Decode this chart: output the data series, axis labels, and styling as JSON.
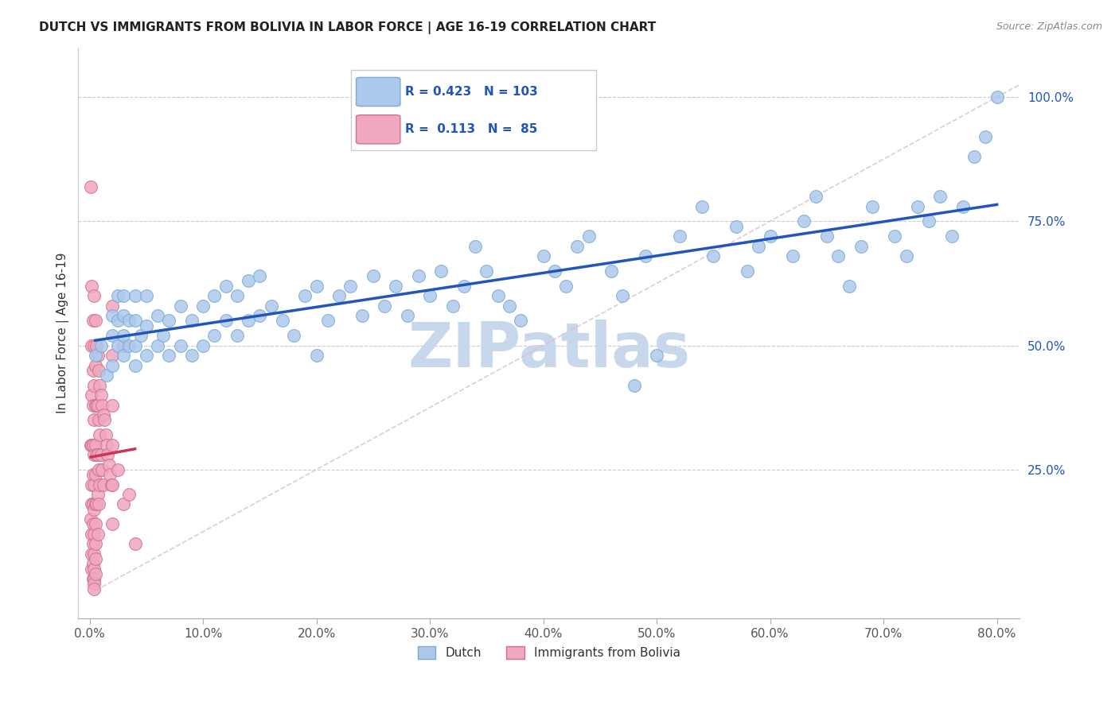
{
  "title": "DUTCH VS IMMIGRANTS FROM BOLIVIA IN LABOR FORCE | AGE 16-19 CORRELATION CHART",
  "source": "Source: ZipAtlas.com",
  "ylabel": "In Labor Force | Age 16-19",
  "xlim": [
    -0.01,
    0.82
  ],
  "ylim": [
    -0.05,
    1.1
  ],
  "xlabel_ticks": [
    0.0,
    0.1,
    0.2,
    0.3,
    0.4,
    0.5,
    0.6,
    0.7,
    0.8
  ],
  "ylabel_ticks": [
    0.25,
    0.5,
    0.75,
    1.0
  ],
  "R_dutch": 0.423,
  "N_dutch": 103,
  "R_bolivia": 0.113,
  "N_bolivia": 85,
  "dutch_color": "#adc8ed",
  "dutch_edge_color": "#7aaad0",
  "bolivia_color": "#f0a8be",
  "bolivia_edge_color": "#d07090",
  "dutch_line_color": "#2255bb",
  "bolivia_line_color": "#cc3355",
  "ref_line_color": "#cccccc",
  "ref_line_dash_color": "#ddaaaa",
  "legend_text_color": "#2255bb",
  "watermark": "ZIPatlas",
  "watermark_color": "#c8d8ec",
  "dutch_x": [
    0.005,
    0.01,
    0.015,
    0.02,
    0.02,
    0.02,
    0.025,
    0.025,
    0.025,
    0.03,
    0.03,
    0.03,
    0.03,
    0.035,
    0.035,
    0.04,
    0.04,
    0.04,
    0.04,
    0.045,
    0.05,
    0.05,
    0.05,
    0.06,
    0.06,
    0.065,
    0.07,
    0.07,
    0.08,
    0.08,
    0.09,
    0.09,
    0.1,
    0.1,
    0.11,
    0.11,
    0.12,
    0.12,
    0.13,
    0.13,
    0.14,
    0.14,
    0.15,
    0.15,
    0.16,
    0.17,
    0.18,
    0.19,
    0.2,
    0.2,
    0.21,
    0.22,
    0.23,
    0.24,
    0.25,
    0.26,
    0.27,
    0.28,
    0.29,
    0.3,
    0.31,
    0.32,
    0.33,
    0.34,
    0.35,
    0.36,
    0.37,
    0.38,
    0.4,
    0.41,
    0.42,
    0.43,
    0.44,
    0.46,
    0.47,
    0.48,
    0.49,
    0.5,
    0.52,
    0.54,
    0.55,
    0.57,
    0.58,
    0.59,
    0.6,
    0.62,
    0.63,
    0.64,
    0.65,
    0.66,
    0.67,
    0.68,
    0.69,
    0.71,
    0.72,
    0.73,
    0.74,
    0.75,
    0.76,
    0.77,
    0.78,
    0.79,
    0.8
  ],
  "dutch_y": [
    0.48,
    0.5,
    0.44,
    0.46,
    0.52,
    0.56,
    0.5,
    0.55,
    0.6,
    0.48,
    0.52,
    0.56,
    0.6,
    0.5,
    0.55,
    0.46,
    0.5,
    0.55,
    0.6,
    0.52,
    0.48,
    0.54,
    0.6,
    0.5,
    0.56,
    0.52,
    0.48,
    0.55,
    0.5,
    0.58,
    0.48,
    0.55,
    0.5,
    0.58,
    0.52,
    0.6,
    0.55,
    0.62,
    0.52,
    0.6,
    0.55,
    0.63,
    0.56,
    0.64,
    0.58,
    0.55,
    0.52,
    0.6,
    0.48,
    0.62,
    0.55,
    0.6,
    0.62,
    0.56,
    0.64,
    0.58,
    0.62,
    0.56,
    0.64,
    0.6,
    0.65,
    0.58,
    0.62,
    0.7,
    0.65,
    0.6,
    0.58,
    0.55,
    0.68,
    0.65,
    0.62,
    0.7,
    0.72,
    0.65,
    0.6,
    0.42,
    0.68,
    0.48,
    0.72,
    0.78,
    0.68,
    0.74,
    0.65,
    0.7,
    0.72,
    0.68,
    0.75,
    0.8,
    0.72,
    0.68,
    0.62,
    0.7,
    0.78,
    0.72,
    0.68,
    0.78,
    0.75,
    0.8,
    0.72,
    0.78,
    0.88,
    0.92,
    1.0
  ],
  "bolivia_x": [
    0.001,
    0.001,
    0.001,
    0.002,
    0.002,
    0.002,
    0.002,
    0.002,
    0.002,
    0.002,
    0.002,
    0.002,
    0.003,
    0.003,
    0.003,
    0.003,
    0.003,
    0.003,
    0.003,
    0.003,
    0.003,
    0.003,
    0.004,
    0.004,
    0.004,
    0.004,
    0.004,
    0.004,
    0.004,
    0.004,
    0.004,
    0.004,
    0.004,
    0.004,
    0.004,
    0.005,
    0.005,
    0.005,
    0.005,
    0.005,
    0.005,
    0.005,
    0.005,
    0.005,
    0.005,
    0.006,
    0.006,
    0.006,
    0.006,
    0.007,
    0.007,
    0.007,
    0.007,
    0.007,
    0.008,
    0.008,
    0.008,
    0.008,
    0.009,
    0.009,
    0.009,
    0.01,
    0.01,
    0.011,
    0.011,
    0.012,
    0.012,
    0.013,
    0.014,
    0.015,
    0.016,
    0.017,
    0.018,
    0.019,
    0.02,
    0.02,
    0.02,
    0.02,
    0.02,
    0.02,
    0.025,
    0.03,
    0.03,
    0.035,
    0.04
  ],
  "bolivia_y": [
    0.82,
    0.3,
    0.15,
    0.62,
    0.5,
    0.4,
    0.3,
    0.22,
    0.18,
    0.12,
    0.08,
    0.05,
    0.55,
    0.45,
    0.38,
    0.3,
    0.24,
    0.18,
    0.14,
    0.1,
    0.06,
    0.03,
    0.6,
    0.5,
    0.42,
    0.35,
    0.28,
    0.22,
    0.17,
    0.12,
    0.08,
    0.05,
    0.03,
    0.02,
    0.01,
    0.55,
    0.46,
    0.38,
    0.3,
    0.24,
    0.18,
    0.14,
    0.1,
    0.07,
    0.04,
    0.5,
    0.38,
    0.28,
    0.18,
    0.48,
    0.38,
    0.28,
    0.2,
    0.12,
    0.45,
    0.35,
    0.25,
    0.18,
    0.42,
    0.32,
    0.22,
    0.4,
    0.28,
    0.38,
    0.25,
    0.36,
    0.22,
    0.35,
    0.32,
    0.3,
    0.28,
    0.26,
    0.24,
    0.22,
    0.58,
    0.48,
    0.38,
    0.3,
    0.22,
    0.14,
    0.25,
    0.5,
    0.18,
    0.2,
    0.1
  ]
}
